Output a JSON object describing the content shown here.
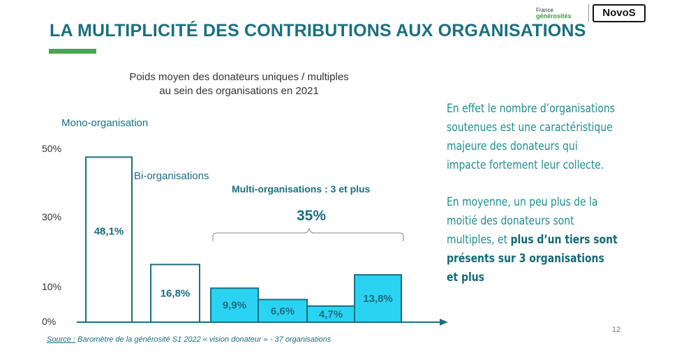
{
  "slide": {
    "title": "LA MULTIPLICITÉ DES CONTRIBUTIONS AUX ORGANISATIONS",
    "page_number": "12",
    "source_label": "Source :",
    "source_text": " Baromètre de la générosité S1 2022 « vision donateur » - 37 organisations",
    "logos": {
      "france_generosites_line1": "France",
      "france_generosites_line2": "générosités",
      "novos": "NovoS"
    }
  },
  "chart_data": {
    "type": "bar",
    "title": "Poids moyen des donateurs uniques / multiples au sein des organisations en 2021",
    "title_lines": [
      "Poids moyen des donateurs uniques / multiples",
      "au sein des organisations en 2021"
    ],
    "y_ticks": [
      "50%",
      "30%",
      "10%",
      "0%"
    ],
    "ylim": [
      0,
      50
    ],
    "bars": [
      {
        "value": 48.1,
        "label": "48,1%",
        "style": "outline"
      },
      {
        "value": 16.8,
        "label": "16,8%",
        "style": "outline"
      },
      {
        "value": 9.9,
        "label": "9,9%",
        "style": "filled"
      },
      {
        "value": 6.6,
        "label": "6,6%",
        "style": "filled"
      },
      {
        "value": 4.7,
        "label": "4,7%",
        "style": "filled"
      },
      {
        "value": 13.8,
        "label": "13,8%",
        "style": "filled"
      }
    ],
    "group_labels": {
      "mono": "Mono-organisation",
      "bi": "Bi-organisations",
      "multi": "Multi-organisations : 3 et plus",
      "multi_total": "35%"
    },
    "colors": {
      "outline": "#1a6f80",
      "fill": "#2bd3f2",
      "axis": "#1a6f80",
      "text": "#1a6f80"
    }
  },
  "side_text": {
    "paragraph1": "En effet le nombre d’organisations soutenues est une caractéristique majeure des donateurs qui impacte fortement leur collecte.",
    "paragraph2_pre": "En moyenne, un peu plus de la moitié des donateurs sont multiples, et ",
    "paragraph2_bold": "plus d’un tiers sont présents sur 3 organisations et plus"
  }
}
